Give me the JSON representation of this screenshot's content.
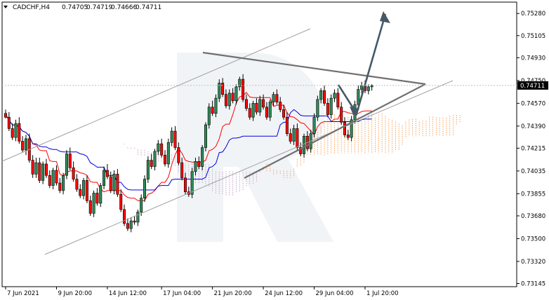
{
  "chart_data": {
    "type": "candlestick",
    "title": "CADCHF,H4",
    "ohlc_header": [
      "0.74705",
      "0.74719",
      "0.74666",
      "0.74711"
    ],
    "current_price": 0.74711,
    "current_price_label": "0.74711",
    "ylim": [
      0.7312,
      0.7537
    ],
    "y_ticks": [
      {
        "value": 0.7528,
        "label": "0.75280"
      },
      {
        "value": 0.75105,
        "label": "0.75105"
      },
      {
        "value": 0.7493,
        "label": "0.74930"
      },
      {
        "value": 0.7475,
        "label": "0.74750"
      },
      {
        "value": 0.7457,
        "label": "0.74570"
      },
      {
        "value": 0.7439,
        "label": "0.74390"
      },
      {
        "value": 0.74215,
        "label": "0.74215"
      },
      {
        "value": 0.74035,
        "label": "0.74035"
      },
      {
        "value": 0.73855,
        "label": "0.73855"
      },
      {
        "value": 0.7368,
        "label": "0.73680"
      },
      {
        "value": 0.735,
        "label": "0.73500"
      },
      {
        "value": 0.7332,
        "label": "0.73320"
      },
      {
        "value": 0.73145,
        "label": "0.73145"
      }
    ],
    "x_ticks": [
      {
        "bar": 0,
        "label": "7 Jun 2021"
      },
      {
        "bar": 15,
        "label": "9 Jun 20:00"
      },
      {
        "bar": 30,
        "label": "14 Jun 12:00"
      },
      {
        "bar": 46,
        "label": "17 Jun 04:00"
      },
      {
        "bar": 61,
        "label": "21 Jun 20:00"
      },
      {
        "bar": 76,
        "label": "24 Jun 12:00"
      },
      {
        "bar": 91,
        "label": "29 Jun 04:00"
      },
      {
        "bar": 106,
        "label": "1 Jul 20:00"
      }
    ],
    "bars_total": 146,
    "candles": [
      [
        0.7449,
        0.7452,
        0.7445,
        0.7446
      ],
      [
        0.7446,
        0.745,
        0.7435,
        0.7437
      ],
      [
        0.7437,
        0.7441,
        0.7428,
        0.743
      ],
      [
        0.743,
        0.7444,
        0.7427,
        0.7441
      ],
      [
        0.7441,
        0.7446,
        0.7425,
        0.7427
      ],
      [
        0.7427,
        0.7431,
        0.7418,
        0.742
      ],
      [
        0.742,
        0.7432,
        0.7416,
        0.7429
      ],
      [
        0.7429,
        0.7433,
        0.741,
        0.7412
      ],
      [
        0.7412,
        0.7416,
        0.7398,
        0.7401
      ],
      [
        0.7401,
        0.7414,
        0.7398,
        0.741
      ],
      [
        0.741,
        0.7414,
        0.7394,
        0.7396
      ],
      [
        0.7396,
        0.7411,
        0.7393,
        0.7409
      ],
      [
        0.7409,
        0.7413,
        0.7398,
        0.74
      ],
      [
        0.74,
        0.7404,
        0.739,
        0.7392
      ],
      [
        0.7392,
        0.7406,
        0.7389,
        0.7404
      ],
      [
        0.7404,
        0.7408,
        0.7392,
        0.7394
      ],
      [
        0.7394,
        0.7398,
        0.7386,
        0.7388
      ],
      [
        0.7388,
        0.7402,
        0.7385,
        0.74
      ],
      [
        0.74,
        0.742,
        0.7397,
        0.7417
      ],
      [
        0.7417,
        0.7422,
        0.7404,
        0.7406
      ],
      [
        0.7406,
        0.7411,
        0.7395,
        0.7397
      ],
      [
        0.7397,
        0.7401,
        0.7387,
        0.7389
      ],
      [
        0.7389,
        0.7393,
        0.7382,
        0.7384
      ],
      [
        0.7384,
        0.7398,
        0.7381,
        0.7396
      ],
      [
        0.7396,
        0.74,
        0.7378,
        0.738
      ],
      [
        0.738,
        0.7384,
        0.7368,
        0.737
      ],
      [
        0.737,
        0.7388,
        0.7367,
        0.7386
      ],
      [
        0.7386,
        0.739,
        0.7376,
        0.7378
      ],
      [
        0.7378,
        0.7394,
        0.7375,
        0.7392
      ],
      [
        0.7392,
        0.7407,
        0.7389,
        0.7404
      ],
      [
        0.7404,
        0.7409,
        0.7397,
        0.7399
      ],
      [
        0.7399,
        0.7403,
        0.7386,
        0.7388
      ],
      [
        0.7388,
        0.7404,
        0.7385,
        0.7401
      ],
      [
        0.7401,
        0.7405,
        0.7383,
        0.7385
      ],
      [
        0.7385,
        0.7389,
        0.7371,
        0.7373
      ],
      [
        0.7373,
        0.7377,
        0.736,
        0.7362
      ],
      [
        0.7362,
        0.7366,
        0.7356,
        0.7358
      ],
      [
        0.7358,
        0.7367,
        0.7355,
        0.7364
      ],
      [
        0.7364,
        0.7368,
        0.7361,
        0.7363
      ],
      [
        0.7363,
        0.7373,
        0.736,
        0.7371
      ],
      [
        0.7371,
        0.7385,
        0.7368,
        0.7382
      ],
      [
        0.7382,
        0.74,
        0.7379,
        0.7397
      ],
      [
        0.7397,
        0.7415,
        0.7394,
        0.7412
      ],
      [
        0.7412,
        0.7417,
        0.7405,
        0.7407
      ],
      [
        0.7407,
        0.7421,
        0.7404,
        0.7419
      ],
      [
        0.7419,
        0.7428,
        0.7416,
        0.7425
      ],
      [
        0.7425,
        0.7429,
        0.7414,
        0.7416
      ],
      [
        0.7416,
        0.742,
        0.7407,
        0.7409
      ],
      [
        0.7409,
        0.7429,
        0.7406,
        0.7426
      ],
      [
        0.7426,
        0.7438,
        0.7423,
        0.7435
      ],
      [
        0.7435,
        0.7439,
        0.742,
        0.7422
      ],
      [
        0.7422,
        0.7426,
        0.7408,
        0.741
      ],
      [
        0.741,
        0.7414,
        0.7396,
        0.7398
      ],
      [
        0.7398,
        0.7402,
        0.7385,
        0.7387
      ],
      [
        0.7387,
        0.7391,
        0.7383,
        0.7385
      ],
      [
        0.7385,
        0.7406,
        0.7382,
        0.7403
      ],
      [
        0.7403,
        0.7414,
        0.74,
        0.7411
      ],
      [
        0.7411,
        0.7415,
        0.7405,
        0.7407
      ],
      [
        0.7407,
        0.7424,
        0.7404,
        0.7422
      ],
      [
        0.7422,
        0.7442,
        0.7419,
        0.744
      ],
      [
        0.744,
        0.7457,
        0.7437,
        0.7454
      ],
      [
        0.7454,
        0.7459,
        0.7447,
        0.7449
      ],
      [
        0.7449,
        0.7464,
        0.7446,
        0.7461
      ],
      [
        0.7461,
        0.7476,
        0.7458,
        0.7473
      ],
      [
        0.7473,
        0.7477,
        0.7462,
        0.7464
      ],
      [
        0.7464,
        0.7468,
        0.7453,
        0.7455
      ],
      [
        0.7455,
        0.7468,
        0.7452,
        0.7465
      ],
      [
        0.7465,
        0.7469,
        0.7457,
        0.7459
      ],
      [
        0.7459,
        0.7472,
        0.7456,
        0.747
      ],
      [
        0.747,
        0.7478,
        0.7467,
        0.7476
      ],
      [
        0.7476,
        0.748,
        0.7458,
        0.746
      ],
      [
        0.746,
        0.7464,
        0.7451,
        0.7453
      ],
      [
        0.7453,
        0.7457,
        0.7444,
        0.7446
      ],
      [
        0.7446,
        0.7459,
        0.7443,
        0.7457
      ],
      [
        0.7457,
        0.7461,
        0.7448,
        0.745
      ],
      [
        0.745,
        0.7463,
        0.7447,
        0.746
      ],
      [
        0.746,
        0.7464,
        0.7452,
        0.7454
      ],
      [
        0.7454,
        0.7458,
        0.7444,
        0.7446
      ],
      [
        0.7446,
        0.746,
        0.7443,
        0.7458
      ],
      [
        0.7458,
        0.7466,
        0.7455,
        0.7464
      ],
      [
        0.7464,
        0.7468,
        0.7456,
        0.7458
      ],
      [
        0.7458,
        0.7462,
        0.745,
        0.7452
      ],
      [
        0.7452,
        0.7456,
        0.7444,
        0.7446
      ],
      [
        0.7446,
        0.745,
        0.7431,
        0.7433
      ],
      [
        0.7433,
        0.7437,
        0.7425,
        0.7427
      ],
      [
        0.7427,
        0.744,
        0.7424,
        0.7437
      ],
      [
        0.7437,
        0.7441,
        0.742,
        0.7422
      ],
      [
        0.7422,
        0.7426,
        0.7415,
        0.7417
      ],
      [
        0.7417,
        0.7433,
        0.7414,
        0.7431
      ],
      [
        0.7431,
        0.7435,
        0.7419,
        0.7421
      ],
      [
        0.7421,
        0.7436,
        0.7418,
        0.7433
      ],
      [
        0.7433,
        0.7449,
        0.743,
        0.7446
      ],
      [
        0.7446,
        0.7463,
        0.7443,
        0.746
      ],
      [
        0.746,
        0.7469,
        0.7457,
        0.7467
      ],
      [
        0.7467,
        0.7471,
        0.7455,
        0.7457
      ],
      [
        0.7457,
        0.7461,
        0.7446,
        0.7448
      ],
      [
        0.7448,
        0.7464,
        0.7445,
        0.7461
      ],
      [
        0.7461,
        0.7468,
        0.7458,
        0.7465
      ],
      [
        0.7465,
        0.7469,
        0.7452,
        0.7454
      ],
      [
        0.7454,
        0.7458,
        0.744,
        0.7442
      ],
      [
        0.7442,
        0.7446,
        0.743,
        0.7432
      ],
      [
        0.7432,
        0.7436,
        0.7428,
        0.743
      ],
      [
        0.743,
        0.7447,
        0.7427,
        0.7444
      ],
      [
        0.7444,
        0.7459,
        0.7441,
        0.7456
      ],
      [
        0.7456,
        0.7471,
        0.7453,
        0.7468
      ],
      [
        0.7468,
        0.7474,
        0.7465,
        0.7471
      ],
      [
        0.7471,
        0.7475,
        0.7465,
        0.7467
      ],
      [
        0.7467,
        0.7472,
        0.7464,
        0.747
      ],
      [
        0.747,
        0.7472,
        0.7467,
        0.7471
      ]
    ]
  }
}
